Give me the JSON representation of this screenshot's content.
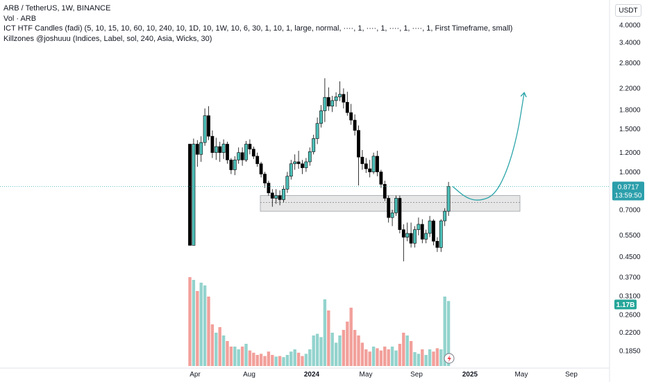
{
  "legend": {
    "line1": "ARB / TetherUS, 1W, BINANCE",
    "line2": "Vol · ARB",
    "line3": "ICT HTF Candles (fadi) (5, 10, 15, 10, 60, 10, 240, 10, 1D, 10, 1W, 10, 6, 30, 1, 10, 1, large, normal, ····, 1, ····, 1, ····, 1, ····, 1, First Timeframe, small)",
    "line4": "Killzones @joshuuu (Indices, Label, sol, 240, Asia, Wicks, 30)"
  },
  "currency_button": "USDT",
  "price_tag": {
    "value": "0.8717",
    "countdown": "13:59:50"
  },
  "volume_tag": "1.17B",
  "colors": {
    "up": "#4dbfb8",
    "down": "#000000",
    "vol_up": "#93d3cd",
    "vol_down": "#f2a09b",
    "price_line": "#2ab2b0",
    "arrow": "#2aa4a9",
    "zone_fill": "#e6e6e6",
    "zone_border": "#9aa0a6",
    "price_tag_bg": "#2b9fab",
    "volume_tag_bg": "#26a69a"
  },
  "chart_data": {
    "type": "candlestick",
    "symbol": "ARB / TetherUS",
    "interval": "1W",
    "exchange": "BINANCE",
    "y_scale": "log",
    "ylim": [
      0.16,
      4.3
    ],
    "y_ticks": [
      "4.0000",
      "3.4000",
      "2.8000",
      "2.2000",
      "1.8000",
      "1.5000",
      "1.2000",
      "1.0000",
      "0.7000",
      "0.5500",
      "0.4500",
      "0.3700",
      "0.3100",
      "0.2600",
      "0.2200",
      "0.1850"
    ],
    "x_ticks": [
      "Apr",
      "Aug",
      "2024",
      "May",
      "Sep",
      "2025",
      "May",
      "Sep"
    ],
    "last_price": 0.8717,
    "ohlc": [
      [
        1.3,
        1.3,
        0.5,
        0.5
      ],
      [
        0.5,
        1.37,
        0.5,
        1.3
      ],
      [
        1.3,
        1.35,
        1.05,
        1.18
      ],
      [
        1.18,
        1.4,
        1.1,
        1.32
      ],
      [
        1.32,
        1.82,
        1.28,
        1.7
      ],
      [
        1.7,
        1.86,
        1.35,
        1.4
      ],
      [
        1.4,
        1.48,
        1.14,
        1.2
      ],
      [
        1.2,
        1.38,
        1.12,
        1.27
      ],
      [
        1.27,
        1.33,
        1.1,
        1.2
      ],
      [
        1.2,
        1.36,
        1.13,
        1.3
      ],
      [
        1.3,
        1.33,
        1.08,
        1.12
      ],
      [
        1.12,
        1.14,
        0.98,
        1.02
      ],
      [
        1.02,
        1.16,
        0.97,
        1.12
      ],
      [
        1.12,
        1.26,
        1.08,
        1.2
      ],
      [
        1.2,
        1.26,
        1.06,
        1.12
      ],
      [
        1.12,
        1.34,
        1.1,
        1.3
      ],
      [
        1.3,
        1.36,
        1.18,
        1.24
      ],
      [
        1.24,
        1.27,
        1.13,
        1.16
      ],
      [
        1.16,
        1.2,
        1.05,
        1.08
      ],
      [
        1.08,
        1.1,
        0.95,
        0.98
      ],
      [
        0.98,
        1.0,
        0.86,
        0.9
      ],
      [
        0.9,
        0.92,
        0.8,
        0.82
      ],
      [
        0.82,
        0.85,
        0.72,
        0.78
      ],
      [
        0.78,
        0.85,
        0.74,
        0.8
      ],
      [
        0.8,
        0.84,
        0.73,
        0.77
      ],
      [
        0.77,
        0.88,
        0.75,
        0.85
      ],
      [
        0.85,
        1.0,
        0.82,
        0.96
      ],
      [
        0.96,
        1.12,
        0.93,
        1.08
      ],
      [
        1.08,
        1.18,
        1.02,
        1.1
      ],
      [
        1.1,
        1.22,
        1.03,
        1.08
      ],
      [
        1.08,
        1.12,
        0.98,
        1.04
      ],
      [
        1.04,
        1.14,
        1.0,
        1.1
      ],
      [
        1.1,
        1.26,
        1.06,
        1.21
      ],
      [
        1.21,
        1.42,
        1.18,
        1.37
      ],
      [
        1.37,
        1.67,
        1.3,
        1.58
      ],
      [
        1.58,
        1.88,
        1.52,
        1.78
      ],
      [
        1.78,
        2.42,
        1.6,
        2.02
      ],
      [
        2.02,
        2.22,
        1.78,
        1.86
      ],
      [
        1.86,
        2.05,
        1.76,
        1.96
      ],
      [
        1.96,
        2.12,
        1.85,
        2.03
      ],
      [
        2.03,
        2.35,
        1.95,
        2.08
      ],
      [
        2.08,
        2.2,
        1.82,
        1.93
      ],
      [
        1.93,
        2.13,
        1.7,
        1.75
      ],
      [
        1.75,
        1.9,
        1.56,
        1.63
      ],
      [
        1.63,
        1.72,
        1.41,
        1.48
      ],
      [
        1.48,
        1.55,
        0.88,
        1.15
      ],
      [
        1.15,
        1.23,
        1.02,
        1.08
      ],
      [
        1.08,
        1.14,
        0.99,
        1.03
      ],
      [
        1.03,
        1.12,
        0.95,
        1.0
      ],
      [
        1.0,
        1.2,
        0.98,
        1.16
      ],
      [
        1.16,
        1.22,
        0.96,
        1.0
      ],
      [
        1.0,
        1.02,
        0.86,
        0.89
      ],
      [
        0.89,
        0.92,
        0.76,
        0.78
      ],
      [
        0.78,
        0.8,
        0.62,
        0.65
      ],
      [
        0.65,
        0.7,
        0.6,
        0.68
      ],
      [
        0.68,
        0.8,
        0.66,
        0.78
      ],
      [
        0.78,
        0.8,
        0.56,
        0.58
      ],
      [
        0.58,
        0.61,
        0.43,
        0.54
      ],
      [
        0.54,
        0.62,
        0.52,
        0.56
      ],
      [
        0.56,
        0.62,
        0.49,
        0.51
      ],
      [
        0.51,
        0.6,
        0.49,
        0.58
      ],
      [
        0.58,
        0.65,
        0.55,
        0.61
      ],
      [
        0.61,
        0.64,
        0.51,
        0.53
      ],
      [
        0.53,
        0.58,
        0.51,
        0.56
      ],
      [
        0.56,
        0.66,
        0.54,
        0.63
      ],
      [
        0.63,
        0.64,
        0.5,
        0.52
      ],
      [
        0.52,
        0.54,
        0.47,
        0.49
      ],
      [
        0.49,
        0.64,
        0.47,
        0.63
      ],
      [
        0.63,
        0.71,
        0.6,
        0.69
      ],
      [
        0.69,
        0.91,
        0.66,
        0.8717
      ]
    ],
    "volume_billions": [
      1.6,
      1.55,
      1.35,
      1.5,
      1.45,
      1.25,
      0.75,
      0.6,
      0.7,
      0.55,
      0.45,
      0.35,
      0.35,
      0.3,
      0.35,
      0.4,
      0.28,
      0.24,
      0.2,
      0.22,
      0.18,
      0.26,
      0.2,
      0.17,
      0.18,
      0.16,
      0.2,
      0.26,
      0.3,
      0.24,
      0.18,
      0.22,
      0.3,
      0.55,
      0.58,
      0.52,
      1.2,
      1.0,
      0.6,
      0.42,
      0.55,
      0.65,
      0.8,
      1.05,
      0.65,
      0.55,
      0.42,
      0.3,
      0.26,
      0.35,
      0.32,
      0.28,
      0.35,
      0.3,
      0.35,
      0.28,
      0.4,
      0.6,
      0.55,
      0.45,
      0.25,
      0.22,
      0.3,
      0.2,
      0.3,
      0.26,
      0.32,
      0.3,
      1.25,
      1.17
    ],
    "support_zone": {
      "high": 0.8,
      "low": 0.69,
      "mid": 0.75
    },
    "projection_path": [
      0.8717,
      0.78,
      0.76,
      0.8,
      1.0,
      1.4,
      2.1
    ]
  }
}
